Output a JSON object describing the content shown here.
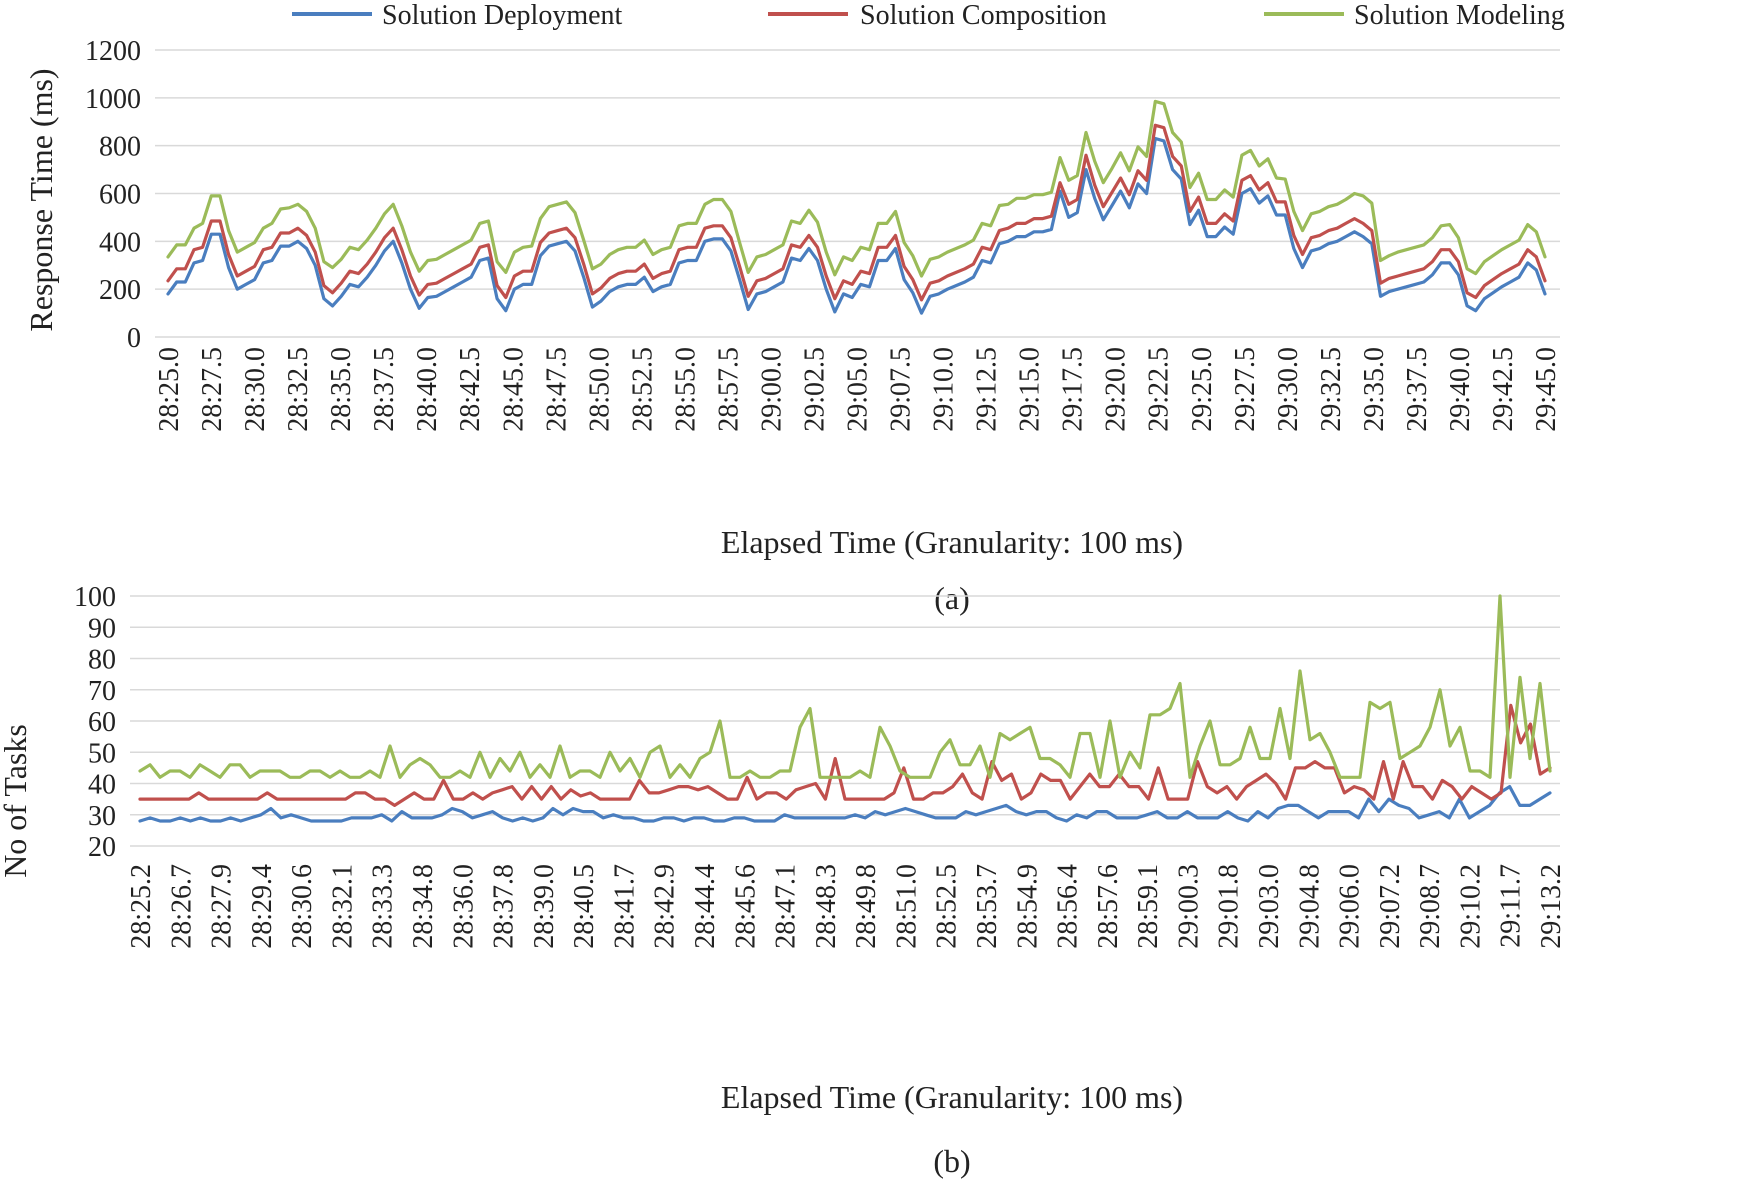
{
  "legend": [
    {
      "name": "Solution Deployment",
      "color": "#4a7ebf"
    },
    {
      "name": "Solution Composition",
      "color": "#c0504d"
    },
    {
      "name": "Solution Modeling",
      "color": "#9bbb59"
    }
  ],
  "chart_data": [
    {
      "type": "line",
      "caption": "(a)",
      "xlabel": "Elapsed Time (Granularity: 100 ms)",
      "ylabel": "Response Time (ms)",
      "ylim": [
        0,
        1200
      ],
      "yticks": [
        "0",
        "200",
        "400",
        "600",
        "800",
        "1000",
        "1200"
      ],
      "xticks": [
        "28:25.0",
        "28:27.5",
        "28:30.0",
        "28:32.5",
        "28:35.0",
        "28:37.5",
        "28:40.0",
        "28:42.5",
        "28:45.0",
        "28:47.5",
        "28:50.0",
        "28:52.5",
        "28:55.0",
        "28:57.5",
        "29:00.0",
        "29:02.5",
        "29:05.0",
        "29:07.5",
        "29:10.0",
        "29:12.5",
        "29:15.0",
        "29:17.5",
        "29:20.0",
        "29:22.5",
        "29:25.0",
        "29:27.5",
        "29:30.0",
        "29:32.5",
        "29:35.0",
        "29:37.5",
        "29:40.0",
        "29:42.5",
        "29:45.0"
      ],
      "series": [
        {
          "name": "Solution Deployment",
          "color": "#4a7ebf",
          "values": [
            180,
            230,
            230,
            310,
            320,
            430,
            430,
            290,
            200,
            220,
            240,
            310,
            320,
            380,
            380,
            400,
            370,
            300,
            160,
            130,
            170,
            220,
            210,
            250,
            300,
            360,
            400,
            310,
            200,
            120,
            165,
            170,
            190,
            210,
            230,
            250,
            320,
            330,
            160,
            110,
            200,
            220,
            220,
            340,
            380,
            390,
            400,
            360,
            250,
            125,
            150,
            190,
            210,
            220,
            220,
            250,
            190,
            210,
            220,
            310,
            320,
            320,
            400,
            410,
            410,
            360,
            240,
            115,
            180,
            190,
            210,
            230,
            330,
            320,
            370,
            320,
            200,
            105,
            180,
            165,
            220,
            210,
            320,
            320,
            370,
            240,
            185,
            100,
            170,
            180,
            200,
            215,
            230,
            250,
            320,
            310,
            390,
            400,
            420,
            420,
            440,
            440,
            450,
            610,
            500,
            520,
            700,
            580,
            490,
            550,
            610,
            540,
            640,
            600,
            830,
            820,
            700,
            660,
            470,
            530,
            420,
            420,
            460,
            430,
            600,
            620,
            560,
            590,
            510,
            510,
            370,
            290,
            360,
            370,
            390,
            400,
            420,
            440,
            420,
            390,
            170,
            190,
            200,
            210,
            220,
            230,
            260,
            310,
            310,
            260,
            130,
            110,
            160,
            185,
            210,
            230,
            250,
            310,
            280,
            180
          ]
        },
        {
          "name": "Solution Composition",
          "color": "#c0504d",
          "values": [
            235,
            285,
            285,
            365,
            375,
            485,
            485,
            345,
            255,
            275,
            295,
            365,
            375,
            435,
            435,
            455,
            425,
            355,
            215,
            185,
            225,
            275,
            265,
            305,
            355,
            415,
            455,
            365,
            255,
            175,
            220,
            225,
            245,
            265,
            285,
            305,
            375,
            385,
            215,
            165,
            255,
            275,
            275,
            395,
            435,
            445,
            455,
            415,
            305,
            180,
            205,
            245,
            265,
            275,
            275,
            305,
            245,
            265,
            275,
            365,
            375,
            375,
            455,
            465,
            465,
            415,
            295,
            170,
            235,
            245,
            265,
            285,
            385,
            375,
            425,
            375,
            255,
            160,
            235,
            220,
            275,
            265,
            375,
            375,
            425,
            295,
            240,
            155,
            225,
            235,
            255,
            270,
            285,
            305,
            375,
            365,
            445,
            455,
            475,
            475,
            495,
            495,
            505,
            645,
            555,
            575,
            760,
            635,
            545,
            605,
            665,
            595,
            695,
            655,
            885,
            875,
            755,
            715,
            525,
            585,
            475,
            475,
            515,
            485,
            655,
            675,
            615,
            645,
            565,
            565,
            425,
            345,
            415,
            425,
            445,
            455,
            475,
            495,
            475,
            445,
            225,
            245,
            255,
            265,
            275,
            285,
            315,
            365,
            365,
            315,
            185,
            165,
            215,
            240,
            265,
            285,
            305,
            365,
            335,
            235
          ]
        },
        {
          "name": "Solution Modeling",
          "color": "#9bbb59",
          "values": [
            335,
            385,
            385,
            455,
            475,
            590,
            590,
            445,
            355,
            375,
            395,
            455,
            475,
            535,
            540,
            555,
            525,
            455,
            315,
            290,
            325,
            375,
            365,
            405,
            455,
            515,
            555,
            465,
            355,
            275,
            320,
            325,
            345,
            365,
            385,
            405,
            475,
            485,
            315,
            270,
            355,
            375,
            380,
            495,
            545,
            555,
            565,
            520,
            405,
            285,
            305,
            345,
            365,
            375,
            375,
            405,
            345,
            365,
            375,
            465,
            475,
            475,
            555,
            575,
            575,
            525,
            395,
            270,
            335,
            345,
            365,
            385,
            485,
            475,
            530,
            480,
            355,
            260,
            335,
            320,
            375,
            365,
            475,
            475,
            525,
            395,
            340,
            255,
            325,
            335,
            355,
            370,
            385,
            405,
            475,
            465,
            550,
            555,
            580,
            580,
            595,
            595,
            605,
            750,
            655,
            675,
            855,
            735,
            645,
            705,
            770,
            695,
            795,
            755,
            985,
            975,
            855,
            815,
            625,
            685,
            575,
            575,
            615,
            585,
            760,
            780,
            715,
            745,
            665,
            660,
            525,
            445,
            515,
            525,
            545,
            555,
            575,
            600,
            590,
            560,
            320,
            340,
            355,
            365,
            375,
            385,
            415,
            465,
            470,
            415,
            285,
            265,
            315,
            340,
            365,
            385,
            405,
            470,
            440,
            335
          ]
        }
      ]
    },
    {
      "type": "line",
      "caption": "(b)",
      "xlabel": "Elapsed Time (Granularity: 100 ms)",
      "ylabel": "No of Tasks",
      "ylim": [
        20,
        100
      ],
      "yticks": [
        "20",
        "30",
        "40",
        "50",
        "60",
        "70",
        "80",
        "90",
        "100"
      ],
      "xticks": [
        "28:25.2",
        "28:26.7",
        "28:27.9",
        "28:29.4",
        "28:30.6",
        "28:32.1",
        "28:33.3",
        "28:34.8",
        "28:36.0",
        "28:37.8",
        "28:39.0",
        "28:40.5",
        "28:41.7",
        "28:42.9",
        "28:44.4",
        "28:45.6",
        "28:47.1",
        "28:48.3",
        "28:49.8",
        "28:51.0",
        "28:52.5",
        "28:53.7",
        "28:54.9",
        "28:56.4",
        "28:57.6",
        "28:59.1",
        "29:00.3",
        "29:01.8",
        "29:03.0",
        "29:04.8",
        "29:06.0",
        "29:07.2",
        "29:08.7",
        "29:10.2",
        "29:11.7",
        "29:13.2"
      ],
      "series": [
        {
          "name": "Solution Deployment",
          "color": "#4a7ebf",
          "values": [
            28,
            29,
            28,
            28,
            29,
            28,
            29,
            28,
            28,
            29,
            28,
            29,
            30,
            32,
            29,
            30,
            29,
            28,
            28,
            28,
            28,
            29,
            29,
            29,
            30,
            28,
            31,
            29,
            29,
            29,
            30,
            32,
            31,
            29,
            30,
            31,
            29,
            28,
            29,
            28,
            29,
            32,
            30,
            32,
            31,
            31,
            29,
            30,
            29,
            29,
            28,
            28,
            29,
            29,
            28,
            29,
            29,
            28,
            28,
            29,
            29,
            28,
            28,
            28,
            30,
            29,
            29,
            29,
            29,
            29,
            29,
            30,
            29,
            31,
            30,
            31,
            32,
            31,
            30,
            29,
            29,
            29,
            31,
            30,
            31,
            32,
            33,
            31,
            30,
            31,
            31,
            29,
            28,
            30,
            29,
            31,
            31,
            29,
            29,
            29,
            30,
            31,
            29,
            29,
            31,
            29,
            29,
            29,
            31,
            29,
            28,
            31,
            29,
            32,
            33,
            33,
            31,
            29,
            31,
            31,
            31,
            29,
            35,
            31,
            35,
            33,
            32,
            29,
            30,
            31,
            29,
            35,
            29,
            31,
            33,
            37,
            39,
            33,
            33,
            35,
            37
          ]
        },
        {
          "name": "Solution Composition",
          "color": "#c0504d",
          "values": [
            35,
            35,
            35,
            35,
            35,
            35,
            37,
            35,
            35,
            35,
            35,
            35,
            35,
            37,
            35,
            35,
            35,
            35,
            35,
            35,
            35,
            35,
            37,
            37,
            35,
            35,
            33,
            35,
            37,
            35,
            35,
            41,
            35,
            35,
            37,
            35,
            37,
            38,
            39,
            35,
            39,
            35,
            39,
            35,
            38,
            36,
            37,
            35,
            35,
            35,
            35,
            41,
            37,
            37,
            38,
            39,
            39,
            38,
            39,
            37,
            35,
            35,
            42,
            35,
            37,
            37,
            35,
            38,
            39,
            40,
            35,
            48,
            35,
            35,
            35,
            35,
            35,
            37,
            45,
            35,
            35,
            37,
            37,
            39,
            43,
            37,
            35,
            47,
            41,
            43,
            35,
            37,
            43,
            41,
            41,
            35,
            39,
            43,
            39,
            39,
            43,
            39,
            39,
            35,
            45,
            35,
            35,
            35,
            47,
            39,
            37,
            39,
            35,
            39,
            41,
            43,
            40,
            35,
            45,
            45,
            47,
            45,
            45,
            37,
            39,
            38,
            35,
            47,
            35,
            47,
            39,
            39,
            35,
            41,
            39,
            35,
            39,
            37,
            35,
            37,
            65,
            53,
            59,
            43,
            45
          ]
        },
        {
          "name": "Solution Modeling",
          "color": "#9bbb59",
          "values": [
            44,
            46,
            42,
            44,
            44,
            42,
            46,
            44,
            42,
            46,
            46,
            42,
            44,
            44,
            44,
            42,
            42,
            44,
            44,
            42,
            44,
            42,
            42,
            44,
            42,
            52,
            42,
            46,
            48,
            46,
            42,
            42,
            44,
            42,
            50,
            42,
            48,
            44,
            50,
            42,
            46,
            42,
            52,
            42,
            44,
            44,
            42,
            50,
            44,
            48,
            42,
            50,
            52,
            42,
            46,
            42,
            48,
            50,
            60,
            42,
            42,
            44,
            42,
            42,
            44,
            44,
            58,
            64,
            42,
            42,
            42,
            42,
            44,
            42,
            58,
            52,
            44,
            42,
            42,
            42,
            50,
            54,
            46,
            46,
            52,
            42,
            56,
            54,
            56,
            58,
            48,
            48,
            46,
            42,
            56,
            56,
            42,
            60,
            42,
            50,
            45,
            62,
            62,
            64,
            72,
            42,
            52,
            60,
            46,
            46,
            48,
            58,
            48,
            48,
            64,
            48,
            76,
            54,
            56,
            50,
            42,
            42,
            42,
            66,
            64,
            66,
            48,
            50,
            52,
            58,
            70,
            52,
            58,
            44,
            44,
            42,
            100,
            42,
            74,
            48,
            72,
            44
          ]
        }
      ]
    }
  ]
}
